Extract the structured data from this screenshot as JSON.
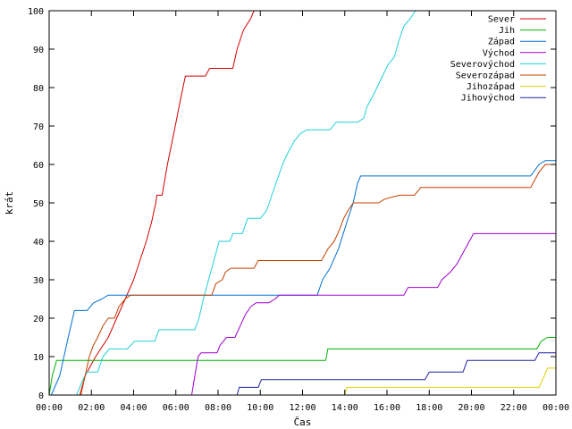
{
  "chart_data": {
    "type": "line",
    "title": "",
    "xlabel": "Čas",
    "ylabel": "krát",
    "xlim": [
      0,
      24
    ],
    "ylim": [
      0,
      100
    ],
    "grid": false,
    "legend": "top-right",
    "x_ticks": [
      {
        "value": 0,
        "label": "00:00"
      },
      {
        "value": 2,
        "label": "02:00"
      },
      {
        "value": 4,
        "label": "04:00"
      },
      {
        "value": 6,
        "label": "06:00"
      },
      {
        "value": 8,
        "label": "08:00"
      },
      {
        "value": 10,
        "label": "10:00"
      },
      {
        "value": 12,
        "label": "12:00"
      },
      {
        "value": 14,
        "label": "14:00"
      },
      {
        "value": 16,
        "label": "16:00"
      },
      {
        "value": 18,
        "label": "18:00"
      },
      {
        "value": 20,
        "label": "20:00"
      },
      {
        "value": 22,
        "label": "22:00"
      },
      {
        "value": 24,
        "label": "00:00"
      }
    ],
    "y_ticks": [
      0,
      10,
      20,
      30,
      40,
      50,
      60,
      70,
      80,
      90,
      100
    ],
    "series": [
      {
        "name": "Sever",
        "color": "#d40000",
        "points": [
          [
            1.5,
            0
          ],
          [
            1.7,
            5
          ],
          [
            2.2,
            10
          ],
          [
            2.8,
            15
          ],
          [
            3.2,
            20
          ],
          [
            3.6,
            25
          ],
          [
            4.0,
            30
          ],
          [
            4.3,
            35
          ],
          [
            4.6,
            40
          ],
          [
            4.85,
            45
          ],
          [
            5.05,
            50
          ],
          [
            5.1,
            52
          ],
          [
            5.35,
            52
          ],
          [
            5.6,
            60
          ],
          [
            5.9,
            68
          ],
          [
            6.15,
            75
          ],
          [
            6.45,
            83
          ],
          [
            7.4,
            83
          ],
          [
            7.6,
            85
          ],
          [
            8.7,
            85
          ],
          [
            8.9,
            90
          ],
          [
            9.2,
            95
          ],
          [
            9.55,
            98
          ],
          [
            9.7,
            100
          ]
        ]
      },
      {
        "name": "Jih",
        "color": "#00b000",
        "points": [
          [
            0,
            0
          ],
          [
            0.15,
            5
          ],
          [
            0.35,
            9
          ],
          [
            13.1,
            9
          ],
          [
            13.2,
            12
          ],
          [
            23.1,
            12
          ],
          [
            23.3,
            14
          ],
          [
            23.6,
            15
          ],
          [
            24,
            15
          ]
        ]
      },
      {
        "name": "Západ",
        "color": "#0070d0",
        "points": [
          [
            0.1,
            0
          ],
          [
            0.5,
            5
          ],
          [
            0.9,
            15
          ],
          [
            1.2,
            22
          ],
          [
            1.8,
            22
          ],
          [
            2.1,
            24
          ],
          [
            2.5,
            25
          ],
          [
            2.8,
            26
          ],
          [
            12.7,
            26
          ],
          [
            12.95,
            30
          ],
          [
            13.3,
            33
          ],
          [
            13.7,
            38
          ],
          [
            14.1,
            45
          ],
          [
            14.4,
            50
          ],
          [
            14.6,
            55
          ],
          [
            14.75,
            57
          ],
          [
            22.8,
            57
          ],
          [
            23.2,
            60
          ],
          [
            23.5,
            61
          ],
          [
            24,
            61
          ]
        ]
      },
      {
        "name": "Východ",
        "color": "#a000d0",
        "points": [
          [
            6.75,
            0
          ],
          [
            6.9,
            5
          ],
          [
            7.05,
            10
          ],
          [
            7.2,
            11
          ],
          [
            7.95,
            11
          ],
          [
            8.1,
            13
          ],
          [
            8.4,
            15
          ],
          [
            8.8,
            15
          ],
          [
            9.05,
            18
          ],
          [
            9.3,
            21
          ],
          [
            9.55,
            23
          ],
          [
            9.8,
            24
          ],
          [
            10.4,
            24
          ],
          [
            10.7,
            25
          ],
          [
            10.9,
            26
          ],
          [
            16.8,
            26
          ],
          [
            17.0,
            28
          ],
          [
            18.4,
            28
          ],
          [
            18.6,
            30
          ],
          [
            19.0,
            32
          ],
          [
            19.3,
            34
          ],
          [
            19.5,
            36
          ],
          [
            19.7,
            38
          ],
          [
            19.9,
            40
          ],
          [
            20.1,
            42
          ],
          [
            24,
            42
          ]
        ]
      },
      {
        "name": "Severovýchod",
        "color": "#20d0d8",
        "points": [
          [
            1.3,
            0
          ],
          [
            1.6,
            4
          ],
          [
            1.8,
            6
          ],
          [
            2.3,
            6
          ],
          [
            2.55,
            10
          ],
          [
            2.85,
            12
          ],
          [
            3.7,
            12
          ],
          [
            4.05,
            14
          ],
          [
            5.0,
            14
          ],
          [
            5.2,
            17
          ],
          [
            6.9,
            17
          ],
          [
            7.1,
            20
          ],
          [
            7.3,
            25
          ],
          [
            7.55,
            30
          ],
          [
            7.8,
            35
          ],
          [
            8.05,
            40
          ],
          [
            8.55,
            40
          ],
          [
            8.7,
            42
          ],
          [
            9.15,
            42
          ],
          [
            9.4,
            46
          ],
          [
            10.0,
            46
          ],
          [
            10.3,
            48
          ],
          [
            10.55,
            52
          ],
          [
            10.8,
            56
          ],
          [
            11.05,
            60
          ],
          [
            11.3,
            63
          ],
          [
            11.6,
            66
          ],
          [
            11.9,
            68
          ],
          [
            12.2,
            69
          ],
          [
            13.3,
            69
          ],
          [
            13.6,
            71
          ],
          [
            14.6,
            71
          ],
          [
            14.9,
            72
          ],
          [
            15.05,
            75
          ],
          [
            15.35,
            78
          ],
          [
            15.7,
            82
          ],
          [
            16.05,
            86
          ],
          [
            16.35,
            88
          ],
          [
            16.55,
            92
          ],
          [
            16.8,
            96
          ],
          [
            17.1,
            98
          ],
          [
            17.35,
            100
          ]
        ]
      },
      {
        "name": "Severozápad",
        "color": "#c04000",
        "points": [
          [
            1.45,
            0
          ],
          [
            1.7,
            5
          ],
          [
            1.9,
            10
          ],
          [
            2.1,
            13
          ],
          [
            2.3,
            15
          ],
          [
            2.55,
            18
          ],
          [
            2.8,
            20
          ],
          [
            3.1,
            20
          ],
          [
            3.3,
            23
          ],
          [
            3.6,
            25
          ],
          [
            3.85,
            26
          ],
          [
            7.7,
            26
          ],
          [
            7.9,
            29
          ],
          [
            8.2,
            30
          ],
          [
            8.35,
            32
          ],
          [
            8.6,
            33
          ],
          [
            9.7,
            33
          ],
          [
            9.9,
            35
          ],
          [
            12.9,
            35
          ],
          [
            13.2,
            38
          ],
          [
            13.5,
            40
          ],
          [
            13.75,
            43
          ],
          [
            13.95,
            46
          ],
          [
            14.15,
            48
          ],
          [
            14.4,
            50
          ],
          [
            15.6,
            50
          ],
          [
            15.9,
            51
          ],
          [
            16.6,
            52
          ],
          [
            17.3,
            52
          ],
          [
            17.6,
            54
          ],
          [
            22.8,
            54
          ],
          [
            23.0,
            56
          ],
          [
            23.2,
            58
          ],
          [
            23.5,
            60
          ],
          [
            24,
            60
          ]
        ]
      },
      {
        "name": "Jihozápad",
        "color": "#e0d000",
        "points": [
          [
            14.0,
            0
          ],
          [
            14.1,
            2
          ],
          [
            23.2,
            2
          ],
          [
            23.45,
            5
          ],
          [
            23.6,
            7
          ],
          [
            24,
            7
          ]
        ]
      },
      {
        "name": "Jihovýchod",
        "color": "#2020a0",
        "points": [
          [
            8.9,
            0
          ],
          [
            9.0,
            2
          ],
          [
            9.9,
            2
          ],
          [
            10.05,
            4
          ],
          [
            17.8,
            4
          ],
          [
            18.0,
            6
          ],
          [
            19.6,
            6
          ],
          [
            19.8,
            9
          ],
          [
            23.0,
            9
          ],
          [
            23.2,
            11
          ],
          [
            24,
            11
          ]
        ]
      }
    ]
  }
}
